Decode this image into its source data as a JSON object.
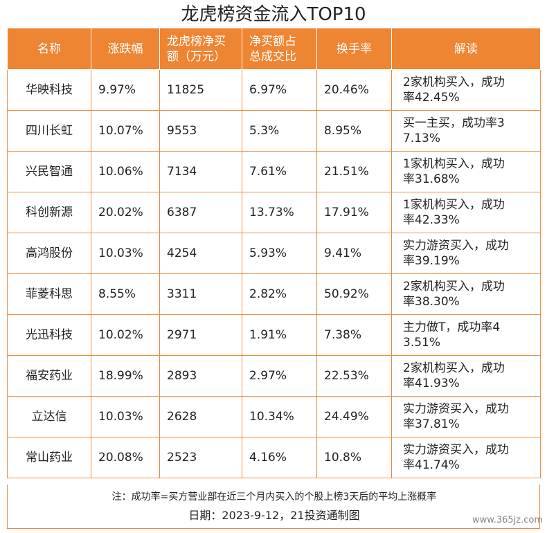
{
  "title": "龙虎榜资金流入TOP10",
  "headers": {
    "name": "名称",
    "change": "涨跌幅",
    "net_line1": "龙虎榜净买",
    "net_line2": "额（万元）",
    "ratio_line1": "净买额占",
    "ratio_line2": "总成交比",
    "turnover": "换手率",
    "reading": "解读"
  },
  "rows": [
    {
      "name": "华映科技",
      "change": "9.97%",
      "net": "11825",
      "ratio": "6.97%",
      "turnover": "20.46%",
      "read1": "2家机构买入，成功",
      "read2": "率42.45%"
    },
    {
      "name": "四川长虹",
      "change": "10.07%",
      "net": "9553",
      "ratio": "5.3%",
      "turnover": "8.95%",
      "read1": "买一主买，成功率3",
      "read2": "7.13%"
    },
    {
      "name": "兴民智通",
      "change": "10.06%",
      "net": "7134",
      "ratio": "7.61%",
      "turnover": "21.51%",
      "read1": "1家机构买入，成功",
      "read2": "率31.68%"
    },
    {
      "name": "科创新源",
      "change": "20.02%",
      "net": "6387",
      "ratio": "13.73%",
      "turnover": "17.91%",
      "read1": "1家机构买入，成功",
      "read2": "率42.33%"
    },
    {
      "name": "高鸿股份",
      "change": "10.03%",
      "net": "4254",
      "ratio": "5.93%",
      "turnover": "9.41%",
      "read1": "实力游资买入，成功",
      "read2": "率39.19%"
    },
    {
      "name": "菲菱科思",
      "change": "8.55%",
      "net": "3311",
      "ratio": "2.82%",
      "turnover": "50.92%",
      "read1": "2家机构买入，成功",
      "read2": "率38.30%"
    },
    {
      "name": "光迅科技",
      "change": "10.02%",
      "net": "2971",
      "ratio": "1.91%",
      "turnover": "7.38%",
      "read1": "主力做T，成功率4",
      "read2": "3.51%"
    },
    {
      "name": "福安药业",
      "change": "18.99%",
      "net": "2893",
      "ratio": "2.97%",
      "turnover": "22.53%",
      "read1": "2家机构买入，成功",
      "read2": "率41.93%"
    },
    {
      "name": "立达信",
      "change": "10.03%",
      "net": "2628",
      "ratio": "10.34%",
      "turnover": "24.49%",
      "read1": "实力游资买入，成功",
      "read2": "率37.81%"
    },
    {
      "name": "常山药业",
      "change": "20.08%",
      "net": "2523",
      "ratio": "4.16%",
      "turnover": "10.8%",
      "read1": "实力游资买入，成功",
      "read2": "率41.74%"
    }
  ],
  "note": "注：成功率=买方营业部在近三个月内买入的个股上榜3天后的平均上涨概率",
  "source": "日期：2023-9-12，21投资通制图",
  "watermark": "www.365jz.com",
  "colors": {
    "header_bg": "#ee8533",
    "border": "#f08a3c"
  }
}
